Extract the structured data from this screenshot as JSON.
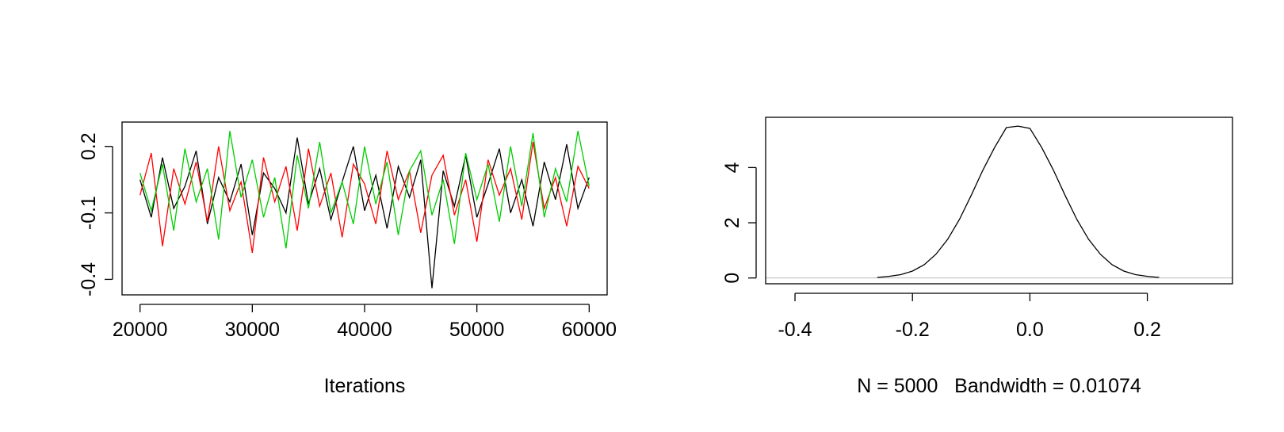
{
  "chart_data": [
    {
      "type": "line",
      "xlabel": "Iterations",
      "x": [
        20000,
        21000,
        22000,
        23000,
        24000,
        25000,
        26000,
        27000,
        28000,
        29000,
        30000,
        31000,
        32000,
        33000,
        34000,
        35000,
        36000,
        37000,
        38000,
        39000,
        40000,
        41000,
        42000,
        43000,
        44000,
        45000,
        46000,
        47000,
        48000,
        49000,
        50000,
        51000,
        52000,
        53000,
        54000,
        55000,
        56000,
        57000,
        58000,
        59000,
        60000
      ],
      "series": [
        {
          "color": "#000000",
          "values": [
            0.05,
            -0.12,
            0.15,
            -0.08,
            0.02,
            0.18,
            -0.15,
            0.06,
            -0.05,
            0.12,
            -0.2,
            0.08,
            0.01,
            -0.1,
            0.24,
            -0.06,
            0.1,
            -0.13,
            0.04,
            0.2,
            -0.09,
            0.07,
            -0.17,
            0.11,
            -0.03,
            0.14,
            -0.44,
            0.09,
            -0.07,
            0.16,
            -0.12,
            0.03,
            0.19,
            -0.1,
            0.05,
            -0.16,
            0.13,
            -0.04,
            0.21,
            -0.08,
            0.06
          ]
        },
        {
          "color": "#ff0000",
          "values": [
            -0.02,
            0.17,
            -0.25,
            0.1,
            -0.06,
            0.13,
            -0.14,
            0.2,
            -0.09,
            0.04,
            -0.28,
            0.15,
            -0.05,
            0.11,
            -0.18,
            0.19,
            -0.07,
            0.08,
            -0.21,
            0.12,
            0.03,
            -0.15,
            0.18,
            -0.04,
            0.09,
            -0.19,
            0.07,
            0.16,
            -0.11,
            0.05,
            -0.23,
            0.14,
            -0.02,
            0.1,
            -0.13,
            0.22,
            -0.08,
            0.06,
            -0.16,
            0.11,
            0.01
          ]
        },
        {
          "color": "#00cd00",
          "values": [
            0.08,
            -0.09,
            0.12,
            -0.18,
            0.19,
            -0.05,
            0.1,
            -0.22,
            0.27,
            -0.03,
            0.14,
            -0.12,
            0.06,
            -0.26,
            0.16,
            -0.08,
            0.22,
            -0.1,
            0.04,
            -0.15,
            0.2,
            -0.06,
            0.13,
            -0.2,
            0.09,
            0.18,
            -0.11,
            0.05,
            -0.24,
            0.17,
            -0.04,
            0.12,
            -0.14,
            0.2,
            -0.07,
            0.26,
            -0.12,
            0.1,
            -0.05,
            0.27,
            0.02
          ]
        }
      ],
      "xlim": [
        18400,
        61600
      ],
      "xticks": [
        20000,
        30000,
        40000,
        50000,
        60000
      ],
      "ylim": [
        -0.47,
        0.31
      ],
      "yticks": [
        -0.4,
        -0.1,
        0.2
      ]
    },
    {
      "type": "line",
      "xlabel": "N = 5000   Bandwidth = 0.01074",
      "x": [
        -0.26,
        -0.24,
        -0.22,
        -0.2,
        -0.18,
        -0.16,
        -0.14,
        -0.12,
        -0.1,
        -0.08,
        -0.06,
        -0.04,
        -0.02,
        0,
        0.02,
        0.04,
        0.06,
        0.08,
        0.1,
        0.12,
        0.14,
        0.16,
        0.18,
        0.2,
        0.22
      ],
      "series": [
        {
          "color": "#000000",
          "values": [
            0.02,
            0.06,
            0.12,
            0.25,
            0.48,
            0.86,
            1.4,
            2.12,
            2.99,
            3.91,
            4.73,
            5.45,
            5.5,
            5.42,
            4.73,
            3.91,
            2.99,
            2.12,
            1.4,
            0.86,
            0.48,
            0.25,
            0.12,
            0.06,
            0.02
          ]
        }
      ],
      "xlim": [
        -0.45,
        0.345
      ],
      "xticks": [
        -0.4,
        -0.2,
        {
          "value": 0,
          "label": "0.0"
        },
        0.2
      ],
      "ylim": [
        -0.21,
        5.82
      ],
      "yticks": [
        0,
        2,
        4
      ]
    }
  ]
}
